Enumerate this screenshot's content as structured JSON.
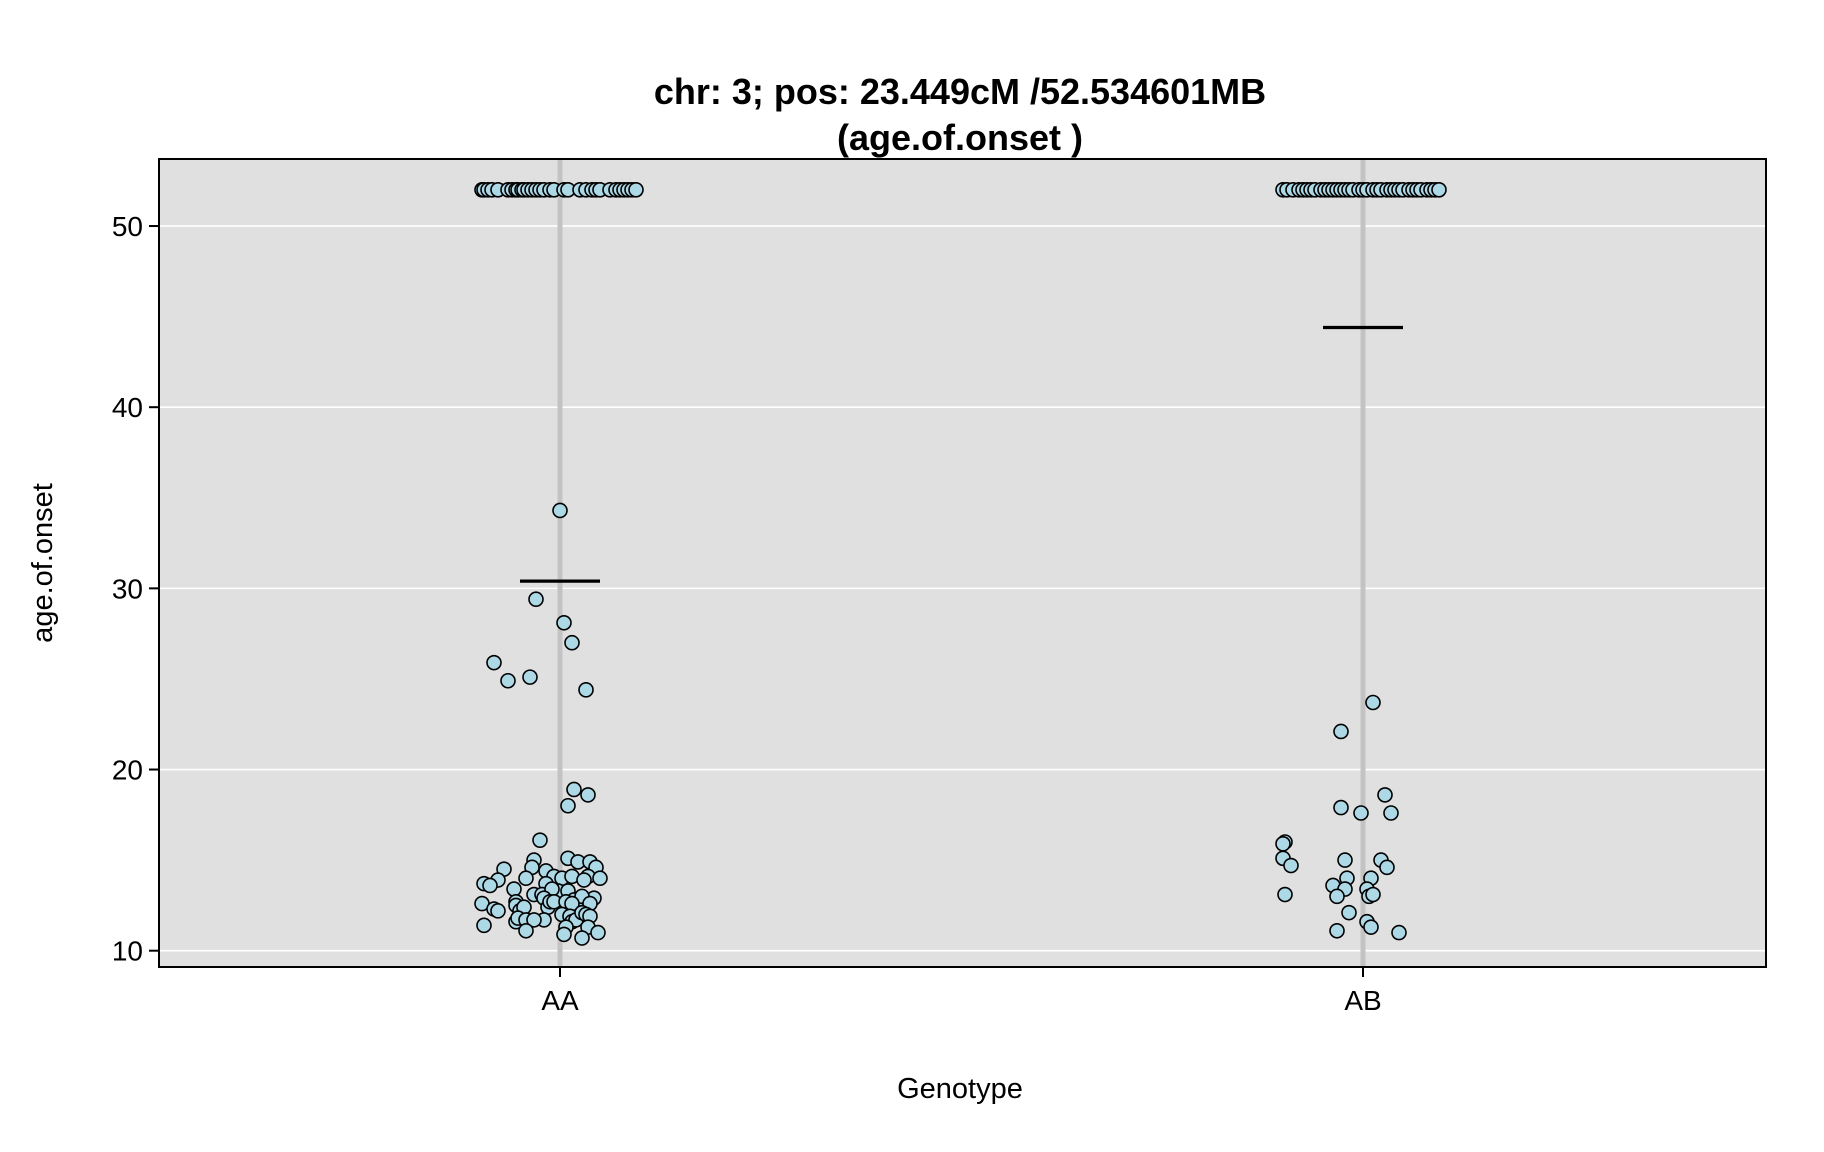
{
  "chart_data": {
    "type": "scatter",
    "title": [
      "chr: 3; pos: 23.449cM /52.534601MB",
      "(age.of.onset )"
    ],
    "xlabel": "Genotype",
    "ylabel": "age.of.onset",
    "categories": [
      "AA",
      "AB"
    ],
    "ylim": [
      9.1,
      53.7
    ],
    "yticks": [
      10,
      20,
      30,
      40,
      50
    ],
    "grid": true,
    "background": "#e0e0e0",
    "point_color": "#add8e6",
    "series": [
      {
        "category": "AA",
        "mean": 30.4,
        "points": [
          {
            "jitter": -0.39,
            "y": 52.0
          },
          {
            "jitter": -0.38,
            "y": 52.0
          },
          {
            "jitter": -0.36,
            "y": 52.0
          },
          {
            "jitter": -0.34,
            "y": 52.0
          },
          {
            "jitter": -0.31,
            "y": 52.0
          },
          {
            "jitter": -0.26,
            "y": 52.0
          },
          {
            "jitter": -0.24,
            "y": 52.0
          },
          {
            "jitter": -0.22,
            "y": 52.0
          },
          {
            "jitter": -0.21,
            "y": 52.0
          },
          {
            "jitter": -0.19,
            "y": 52.0
          },
          {
            "jitter": -0.18,
            "y": 52.0
          },
          {
            "jitter": -0.16,
            "y": 52.0
          },
          {
            "jitter": -0.14,
            "y": 52.0
          },
          {
            "jitter": -0.12,
            "y": 52.0
          },
          {
            "jitter": -0.1,
            "y": 52.0
          },
          {
            "jitter": -0.08,
            "y": 52.0
          },
          {
            "jitter": -0.05,
            "y": 52.0
          },
          {
            "jitter": -0.03,
            "y": 52.0
          },
          {
            "jitter": 0.02,
            "y": 52.0
          },
          {
            "jitter": 0.04,
            "y": 52.0
          },
          {
            "jitter": 0.1,
            "y": 52.0
          },
          {
            "jitter": 0.13,
            "y": 52.0
          },
          {
            "jitter": 0.16,
            "y": 52.0
          },
          {
            "jitter": 0.18,
            "y": 52.0
          },
          {
            "jitter": 0.2,
            "y": 52.0
          },
          {
            "jitter": 0.25,
            "y": 52.0
          },
          {
            "jitter": 0.28,
            "y": 52.0
          },
          {
            "jitter": 0.3,
            "y": 52.0
          },
          {
            "jitter": 0.32,
            "y": 52.0
          },
          {
            "jitter": 0.34,
            "y": 52.0
          },
          {
            "jitter": 0.36,
            "y": 52.0
          },
          {
            "jitter": 0.38,
            "y": 52.0
          },
          {
            "jitter": 0.0,
            "y": 34.3
          },
          {
            "jitter": -0.12,
            "y": 29.4
          },
          {
            "jitter": 0.02,
            "y": 28.1
          },
          {
            "jitter": 0.06,
            "y": 27.0
          },
          {
            "jitter": -0.33,
            "y": 25.9
          },
          {
            "jitter": -0.15,
            "y": 25.1
          },
          {
            "jitter": -0.26,
            "y": 24.9
          },
          {
            "jitter": 0.13,
            "y": 24.4
          },
          {
            "jitter": 0.07,
            "y": 18.9
          },
          {
            "jitter": 0.14,
            "y": 18.6
          },
          {
            "jitter": 0.04,
            "y": 18.0
          },
          {
            "jitter": -0.1,
            "y": 16.1
          },
          {
            "jitter": -0.13,
            "y": 15.0
          },
          {
            "jitter": 0.04,
            "y": 15.1
          },
          {
            "jitter": 0.09,
            "y": 14.9
          },
          {
            "jitter": 0.15,
            "y": 14.9
          },
          {
            "jitter": 0.18,
            "y": 14.6
          },
          {
            "jitter": -0.14,
            "y": 14.6
          },
          {
            "jitter": -0.28,
            "y": 14.5
          },
          {
            "jitter": -0.07,
            "y": 14.4
          },
          {
            "jitter": -0.17,
            "y": 14.0
          },
          {
            "jitter": -0.03,
            "y": 14.1
          },
          {
            "jitter": 0.01,
            "y": 14.0
          },
          {
            "jitter": 0.06,
            "y": 14.1
          },
          {
            "jitter": 0.14,
            "y": 14.1
          },
          {
            "jitter": 0.2,
            "y": 14.0
          },
          {
            "jitter": -0.31,
            "y": 13.9
          },
          {
            "jitter": -0.38,
            "y": 13.7
          },
          {
            "jitter": -0.35,
            "y": 13.6
          },
          {
            "jitter": -0.07,
            "y": 13.7
          },
          {
            "jitter": -0.13,
            "y": 13.1
          },
          {
            "jitter": -0.09,
            "y": 13.1
          },
          {
            "jitter": -0.04,
            "y": 13.1
          },
          {
            "jitter": -0.01,
            "y": 13.3
          },
          {
            "jitter": 0.04,
            "y": 13.3
          },
          {
            "jitter": 0.12,
            "y": 13.9
          },
          {
            "jitter": -0.23,
            "y": 13.4
          },
          {
            "jitter": -0.04,
            "y": 13.4
          },
          {
            "jitter": 0.07,
            "y": 12.8
          },
          {
            "jitter": 0.08,
            "y": 12.6
          },
          {
            "jitter": 0.17,
            "y": 12.9
          },
          {
            "jitter": -0.08,
            "y": 12.9
          },
          {
            "jitter": -0.06,
            "y": 12.4
          },
          {
            "jitter": -0.05,
            "y": 12.7
          },
          {
            "jitter": -0.03,
            "y": 12.7
          },
          {
            "jitter": 0.11,
            "y": 13.0
          },
          {
            "jitter": -0.39,
            "y": 12.6
          },
          {
            "jitter": -0.33,
            "y": 12.3
          },
          {
            "jitter": -0.31,
            "y": 12.2
          },
          {
            "jitter": -0.22,
            "y": 12.7
          },
          {
            "jitter": -0.22,
            "y": 12.5
          },
          {
            "jitter": -0.2,
            "y": 12.2
          },
          {
            "jitter": -0.18,
            "y": 12.4
          },
          {
            "jitter": 0.03,
            "y": 12.7
          },
          {
            "jitter": 0.06,
            "y": 12.6
          },
          {
            "jitter": 0.15,
            "y": 12.6
          },
          {
            "jitter": 0.01,
            "y": 12.0
          },
          {
            "jitter": 0.05,
            "y": 11.9
          },
          {
            "jitter": 0.06,
            "y": 11.6
          },
          {
            "jitter": 0.08,
            "y": 11.7
          },
          {
            "jitter": 0.11,
            "y": 12.1
          },
          {
            "jitter": 0.13,
            "y": 12.0
          },
          {
            "jitter": 0.15,
            "y": 11.9
          },
          {
            "jitter": -0.22,
            "y": 11.6
          },
          {
            "jitter": -0.21,
            "y": 11.8
          },
          {
            "jitter": -0.17,
            "y": 11.7
          },
          {
            "jitter": -0.08,
            "y": 11.7
          },
          {
            "jitter": -0.13,
            "y": 11.7
          },
          {
            "jitter": -0.38,
            "y": 11.4
          },
          {
            "jitter": -0.17,
            "y": 11.1
          },
          {
            "jitter": 0.03,
            "y": 11.3
          },
          {
            "jitter": 0.02,
            "y": 10.9
          },
          {
            "jitter": 0.14,
            "y": 11.3
          },
          {
            "jitter": 0.11,
            "y": 10.7
          },
          {
            "jitter": 0.19,
            "y": 11.0
          }
        ]
      },
      {
        "category": "AB",
        "mean": 44.4,
        "points": [
          {
            "jitter": -0.4,
            "y": 52.0
          },
          {
            "jitter": -0.38,
            "y": 52.0
          },
          {
            "jitter": -0.35,
            "y": 52.0
          },
          {
            "jitter": -0.32,
            "y": 52.0
          },
          {
            "jitter": -0.3,
            "y": 52.0
          },
          {
            "jitter": -0.28,
            "y": 52.0
          },
          {
            "jitter": -0.26,
            "y": 52.0
          },
          {
            "jitter": -0.24,
            "y": 52.0
          },
          {
            "jitter": -0.21,
            "y": 52.0
          },
          {
            "jitter": -0.19,
            "y": 52.0
          },
          {
            "jitter": -0.17,
            "y": 52.0
          },
          {
            "jitter": -0.15,
            "y": 52.0
          },
          {
            "jitter": -0.13,
            "y": 52.0
          },
          {
            "jitter": -0.11,
            "y": 52.0
          },
          {
            "jitter": -0.09,
            "y": 52.0
          },
          {
            "jitter": -0.07,
            "y": 52.0
          },
          {
            "jitter": -0.05,
            "y": 52.0
          },
          {
            "jitter": -0.02,
            "y": 52.0
          },
          {
            "jitter": 0.0,
            "y": 52.0
          },
          {
            "jitter": 0.02,
            "y": 52.0
          },
          {
            "jitter": 0.05,
            "y": 52.0
          },
          {
            "jitter": 0.07,
            "y": 52.0
          },
          {
            "jitter": 0.09,
            "y": 52.0
          },
          {
            "jitter": 0.12,
            "y": 52.0
          },
          {
            "jitter": 0.14,
            "y": 52.0
          },
          {
            "jitter": 0.16,
            "y": 52.0
          },
          {
            "jitter": 0.18,
            "y": 52.0
          },
          {
            "jitter": 0.2,
            "y": 52.0
          },
          {
            "jitter": 0.23,
            "y": 52.0
          },
          {
            "jitter": 0.25,
            "y": 52.0
          },
          {
            "jitter": 0.27,
            "y": 52.0
          },
          {
            "jitter": 0.29,
            "y": 52.0
          },
          {
            "jitter": 0.32,
            "y": 52.0
          },
          {
            "jitter": 0.34,
            "y": 52.0
          },
          {
            "jitter": 0.36,
            "y": 52.0
          },
          {
            "jitter": 0.38,
            "y": 52.0
          },
          {
            "jitter": 0.05,
            "y": 23.7
          },
          {
            "jitter": -0.11,
            "y": 22.1
          },
          {
            "jitter": 0.11,
            "y": 18.6
          },
          {
            "jitter": -0.11,
            "y": 17.9
          },
          {
            "jitter": -0.01,
            "y": 17.6
          },
          {
            "jitter": 0.14,
            "y": 17.6
          },
          {
            "jitter": -0.39,
            "y": 16.0
          },
          {
            "jitter": -0.4,
            "y": 15.9
          },
          {
            "jitter": -0.4,
            "y": 15.1
          },
          {
            "jitter": -0.09,
            "y": 15.0
          },
          {
            "jitter": 0.09,
            "y": 15.0
          },
          {
            "jitter": -0.36,
            "y": 14.7
          },
          {
            "jitter": 0.12,
            "y": 14.6
          },
          {
            "jitter": -0.08,
            "y": 14.0
          },
          {
            "jitter": 0.04,
            "y": 14.0
          },
          {
            "jitter": -0.15,
            "y": 13.6
          },
          {
            "jitter": -0.09,
            "y": 13.4
          },
          {
            "jitter": 0.02,
            "y": 13.4
          },
          {
            "jitter": -0.39,
            "y": 13.1
          },
          {
            "jitter": -0.13,
            "y": 13.0
          },
          {
            "jitter": 0.03,
            "y": 13.0
          },
          {
            "jitter": 0.05,
            "y": 13.1
          },
          {
            "jitter": -0.07,
            "y": 12.1
          },
          {
            "jitter": 0.02,
            "y": 11.6
          },
          {
            "jitter": 0.04,
            "y": 11.3
          },
          {
            "jitter": -0.13,
            "y": 11.1
          },
          {
            "jitter": 0.18,
            "y": 11.0
          }
        ]
      }
    ]
  }
}
